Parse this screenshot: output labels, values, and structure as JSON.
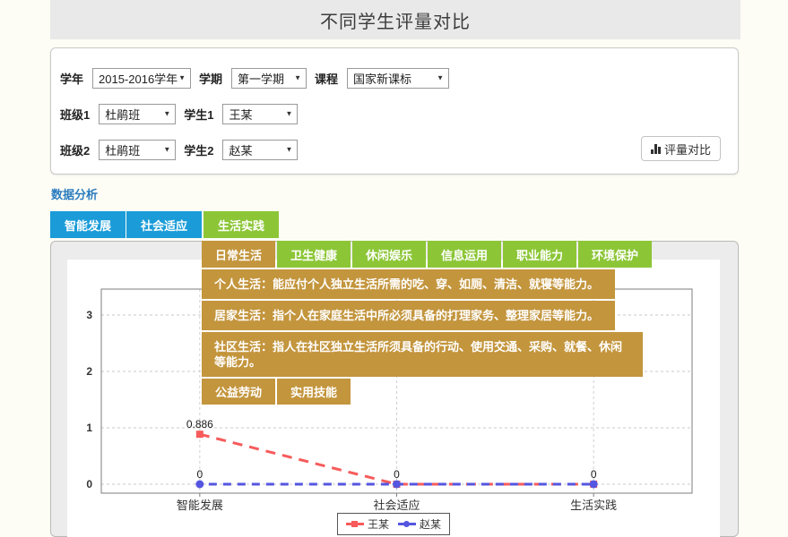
{
  "page": {
    "title": "不同学生评量对比"
  },
  "filters": {
    "school_year": {
      "label": "学年",
      "value": "2015-2016学年"
    },
    "semester": {
      "label": "学期",
      "value": "第一学期"
    },
    "course": {
      "label": "课程",
      "value": "国家新课标"
    },
    "class1": {
      "label": "班级1",
      "value": "杜鹃班"
    },
    "student1": {
      "label": "学生1",
      "value": "王某"
    },
    "class2": {
      "label": "班级2",
      "value": "杜鹃班"
    },
    "student2": {
      "label": "学生2",
      "value": "赵某"
    },
    "compare_button": "评量对比"
  },
  "analysis": {
    "section_label": "数据分析",
    "tabs": [
      {
        "label": "智能发展",
        "active": false
      },
      {
        "label": "社会适应",
        "active": false
      },
      {
        "label": "生活实践",
        "active": true
      }
    ],
    "submenu": [
      {
        "label": "日常生活",
        "active": true
      },
      {
        "label": "卫生健康",
        "active": false
      },
      {
        "label": "休闲娱乐",
        "active": false
      },
      {
        "label": "信息运用",
        "active": false
      },
      {
        "label": "职业能力",
        "active": false
      },
      {
        "label": "环境保护",
        "active": false
      }
    ],
    "submenu_details": [
      "个人生活：能应付个人独立生活所需的吃、穿、如厕、清洁、就寝等能力。",
      "居家生活：指个人在家庭生活中所必须具备的打理家务、整理家居等能力。",
      "社区生活：指人在社区独立生活所须具备的行动、使用交通、采购、就餐、休闲等能力。"
    ],
    "submenu_actions": [
      "公益劳动",
      "实用技能"
    ]
  },
  "chart_data": {
    "type": "line",
    "categories": [
      "智能发展",
      "社会适应",
      "生活实践"
    ],
    "series": [
      {
        "name": "王某",
        "values": [
          0.886,
          0,
          0
        ],
        "color": "#f75b5b",
        "marker": "square",
        "line_style": "dashed"
      },
      {
        "name": "赵某",
        "values": [
          0,
          0,
          0
        ],
        "color": "#5456e0",
        "marker": "circle",
        "line_style": "dashed"
      }
    ],
    "yticks": [
      0,
      1,
      2,
      3
    ],
    "ylim": [
      0,
      3.5
    ],
    "grid": true,
    "data_labels": true,
    "legend_position": "bottom-center"
  },
  "colors": {
    "tab_blue": "#1b9cd8",
    "tab_active_green": "#8cc637",
    "menu_gold": "#c3953d",
    "link_blue": "#2b7cbe",
    "series_red": "#f75b5b",
    "series_blue": "#5456e0"
  }
}
